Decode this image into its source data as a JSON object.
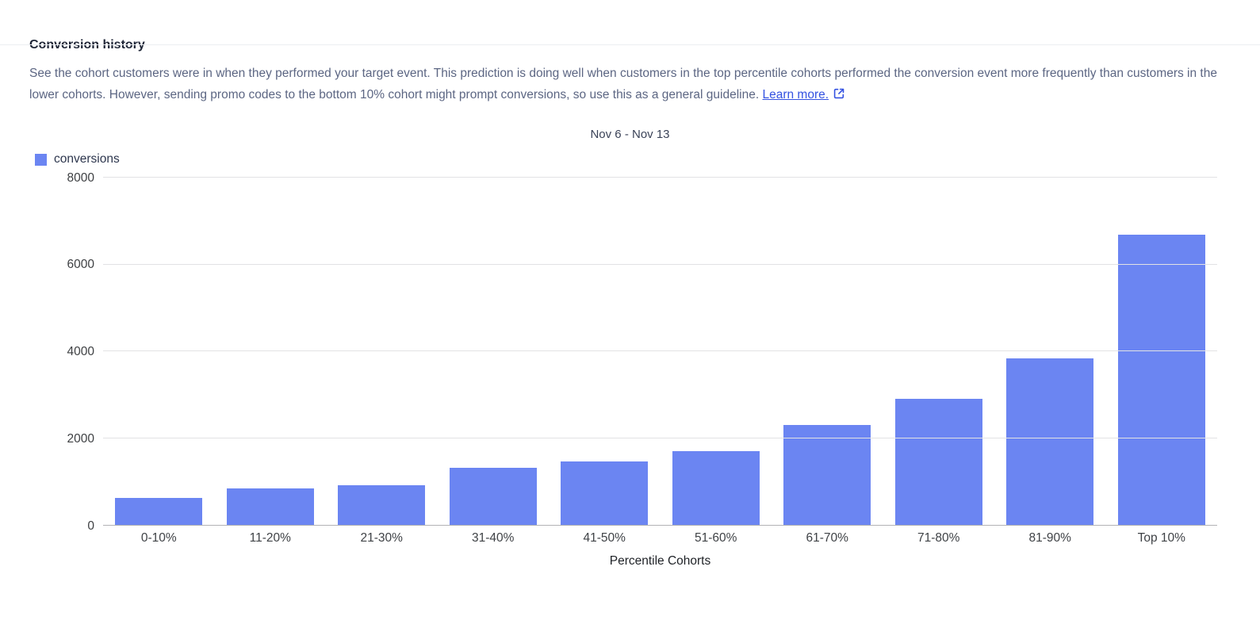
{
  "header": {
    "title": "Conversion history",
    "description": "See the cohort customers were in when they performed your target event. This prediction is doing well when customers in the top percentile cohorts performed the conversion event more frequently than customers in the lower cohorts. However, sending promo codes to the bottom 10% cohort might prompt conversions, so use this as a general guideline.",
    "link_label": "Learn more.",
    "link_icon": "external-link-icon"
  },
  "chart_data": {
    "type": "bar",
    "title": "Nov 6 - Nov 13",
    "series_name": "conversions",
    "categories": [
      "0-10%",
      "11-20%",
      "21-30%",
      "31-40%",
      "41-50%",
      "51-60%",
      "61-70%",
      "71-80%",
      "81-90%",
      "Top 10%"
    ],
    "values": [
      630,
      840,
      920,
      1320,
      1470,
      1690,
      2310,
      2900,
      3830,
      6680
    ],
    "xlabel": "Percentile Cohorts",
    "ylabel": "",
    "ylim": [
      0,
      8000
    ],
    "yticks": [
      0,
      2000,
      4000,
      6000,
      8000
    ],
    "grid": true,
    "legend_position": "top-left"
  },
  "colors": {
    "bar": "#6b85f2",
    "link": "#3452e1",
    "gridline": "#e2e2e4",
    "baseline": "#b2b2b5",
    "title_text": "#1f2637",
    "body_text": "#5c6683",
    "axis_text": "#3f4246"
  }
}
